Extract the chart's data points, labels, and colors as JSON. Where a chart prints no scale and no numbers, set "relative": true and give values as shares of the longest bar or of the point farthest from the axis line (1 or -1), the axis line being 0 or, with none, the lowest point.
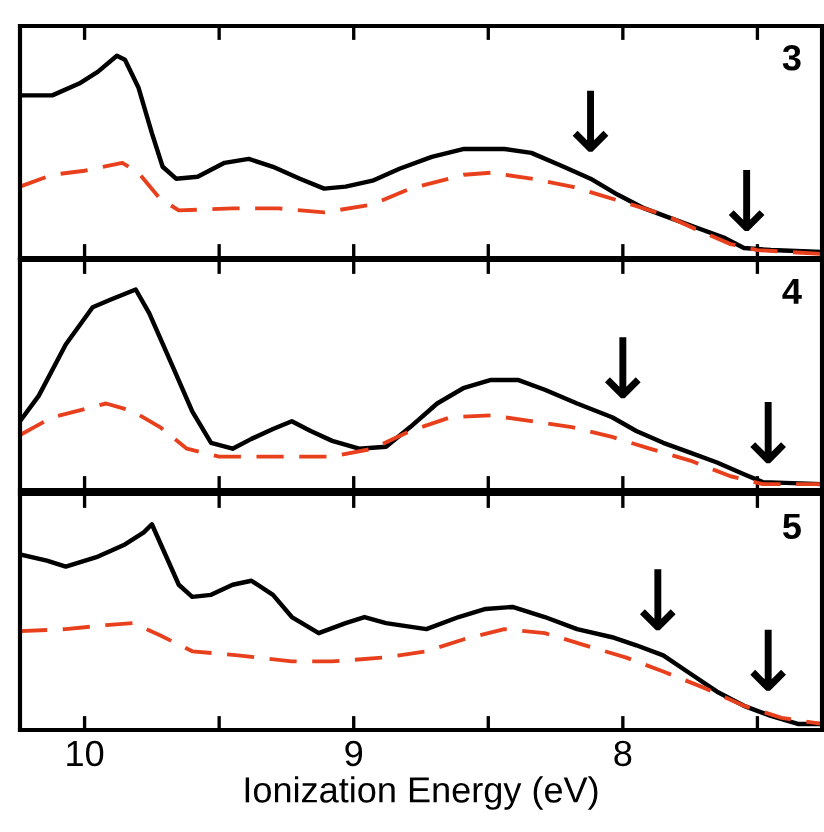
{
  "chart_data": [
    {
      "type": "line",
      "relative": true,
      "xlim": [
        10.24,
        7.26
      ],
      "xticks": [
        10,
        {
          "value": 9.5,
          "label": null
        },
        9,
        {
          "value": 8.5,
          "label": null
        },
        8,
        {
          "value": 7.5,
          "label": null
        }
      ],
      "tick_labels": false,
      "grid": false,
      "legend": false,
      "annotations": [
        "3",
        {
          "text": "↓",
          "x": 8.12,
          "y": 0.43
        },
        {
          "text": "↓",
          "x": 7.54,
          "y": 0.03
        }
      ],
      "series": [
        {
          "color": "#000000",
          "line_style": "solid",
          "x": [
            10.24,
            10.12,
            10.02,
            9.95,
            9.88,
            9.85,
            9.8,
            9.75,
            9.71,
            9.66,
            9.58,
            9.48,
            9.39,
            9.3,
            9.2,
            9.11,
            9.03,
            8.93,
            8.83,
            8.71,
            8.59,
            8.44,
            8.34,
            8.22,
            8.12,
            8.02,
            7.92,
            7.82,
            7.72,
            7.62,
            7.55,
            7.45,
            7.26
          ],
          "values": [
            0.8,
            0.8,
            0.86,
            0.92,
            1.0,
            0.98,
            0.84,
            0.61,
            0.44,
            0.38,
            0.39,
            0.46,
            0.48,
            0.44,
            0.38,
            0.33,
            0.34,
            0.37,
            0.43,
            0.49,
            0.53,
            0.53,
            0.51,
            0.44,
            0.38,
            0.3,
            0.23,
            0.18,
            0.13,
            0.08,
            0.03,
            0.02,
            0.01
          ]
        },
        {
          "color": "#e8401c",
          "line_style": "dashed",
          "x": [
            10.24,
            10.12,
            10.0,
            9.86,
            9.8,
            9.72,
            9.65,
            9.45,
            9.28,
            9.11,
            8.93,
            8.79,
            8.59,
            8.49,
            8.34,
            8.19,
            8.09,
            7.97,
            7.85,
            7.72,
            7.6,
            7.5,
            7.26
          ],
          "values": [
            0.34,
            0.4,
            0.42,
            0.46,
            0.41,
            0.28,
            0.22,
            0.23,
            0.23,
            0.21,
            0.25,
            0.33,
            0.4,
            0.41,
            0.38,
            0.34,
            0.3,
            0.25,
            0.2,
            0.12,
            0.05,
            0.02,
            0.0
          ]
        }
      ]
    },
    {
      "type": "line",
      "relative": true,
      "xlim": [
        10.24,
        7.26
      ],
      "xticks": [
        10,
        {
          "value": 9.5,
          "label": null
        },
        9,
        {
          "value": 8.5,
          "label": null
        },
        8,
        {
          "value": 7.5,
          "label": null
        }
      ],
      "tick_labels": false,
      "grid": false,
      "legend": false,
      "annotations": [
        "4",
        {
          "text": "↓",
          "x": 8.0,
          "y": 0.36
        },
        {
          "text": "↓",
          "x": 7.46,
          "y": 0.03
        }
      ],
      "series": [
        {
          "color": "#000000",
          "line_style": "solid",
          "x": [
            10.24,
            10.17,
            10.07,
            9.97,
            9.9,
            9.81,
            9.76,
            9.67,
            9.6,
            9.53,
            9.45,
            9.38,
            9.3,
            9.23,
            9.16,
            9.08,
            8.98,
            8.88,
            8.79,
            8.69,
            8.59,
            8.49,
            8.39,
            8.29,
            8.17,
            8.04,
            7.95,
            7.85,
            7.75,
            7.65,
            7.55,
            7.48,
            7.26
          ],
          "values": [
            0.33,
            0.46,
            0.72,
            0.91,
            0.95,
            1.0,
            0.88,
            0.6,
            0.38,
            0.22,
            0.19,
            0.24,
            0.29,
            0.33,
            0.28,
            0.23,
            0.19,
            0.2,
            0.3,
            0.42,
            0.5,
            0.54,
            0.54,
            0.49,
            0.42,
            0.35,
            0.28,
            0.22,
            0.17,
            0.12,
            0.06,
            0.02,
            0.01
          ]
        },
        {
          "color": "#e8401c",
          "line_style": "dashed",
          "x": [
            10.24,
            10.12,
            9.92,
            9.82,
            9.72,
            9.62,
            9.5,
            9.28,
            9.08,
            8.93,
            8.79,
            8.64,
            8.49,
            8.34,
            8.19,
            8.04,
            7.9,
            7.75,
            7.6,
            7.48,
            7.26
          ],
          "values": [
            0.26,
            0.35,
            0.42,
            0.38,
            0.3,
            0.19,
            0.15,
            0.15,
            0.15,
            0.19,
            0.28,
            0.35,
            0.36,
            0.33,
            0.3,
            0.25,
            0.19,
            0.13,
            0.05,
            0.01,
            0.01
          ]
        }
      ]
    },
    {
      "type": "line",
      "relative": true,
      "xlim": [
        10.24,
        7.26
      ],
      "xticks": [
        10,
        {
          "value": 9.5,
          "label": null
        },
        9,
        {
          "value": 8.5,
          "label": null
        },
        8,
        {
          "value": 7.5,
          "label": null
        }
      ],
      "tick_labels": "x",
      "grid": false,
      "legend": false,
      "xlabel": "Ionization Energy (eV)",
      "annotations": [
        "5",
        {
          "text": "↓",
          "x": 7.87,
          "y": 0.39
        },
        {
          "text": "↓",
          "x": 7.46,
          "y": 0.09
        }
      ],
      "series": [
        {
          "color": "#000000",
          "line_style": "solid",
          "x": [
            10.24,
            10.14,
            10.07,
            9.95,
            9.85,
            9.78,
            9.75,
            9.7,
            9.65,
            9.6,
            9.53,
            9.45,
            9.38,
            9.3,
            9.23,
            9.13,
            9.03,
            8.96,
            8.88,
            8.73,
            8.61,
            8.51,
            8.41,
            8.29,
            8.17,
            8.04,
            7.95,
            7.85,
            7.75,
            7.65,
            7.55,
            7.45,
            7.35,
            7.26
          ],
          "values": [
            0.85,
            0.82,
            0.79,
            0.84,
            0.9,
            0.96,
            1.0,
            0.85,
            0.7,
            0.64,
            0.65,
            0.7,
            0.72,
            0.65,
            0.54,
            0.46,
            0.51,
            0.54,
            0.51,
            0.48,
            0.54,
            0.58,
            0.59,
            0.54,
            0.48,
            0.44,
            0.4,
            0.35,
            0.26,
            0.17,
            0.1,
            0.05,
            0.01,
            0.01
          ]
        },
        {
          "color": "#e8401c",
          "line_style": "dashed",
          "x": [
            10.24,
            10.07,
            9.92,
            9.82,
            9.72,
            9.6,
            9.43,
            9.23,
            9.08,
            8.88,
            8.73,
            8.59,
            8.44,
            8.29,
            8.14,
            7.99,
            7.85,
            7.7,
            7.55,
            7.41,
            7.26
          ],
          "values": [
            0.47,
            0.48,
            0.5,
            0.51,
            0.45,
            0.37,
            0.35,
            0.32,
            0.32,
            0.34,
            0.37,
            0.43,
            0.48,
            0.46,
            0.4,
            0.34,
            0.27,
            0.19,
            0.1,
            0.04,
            0.01
          ]
        }
      ]
    }
  ]
}
